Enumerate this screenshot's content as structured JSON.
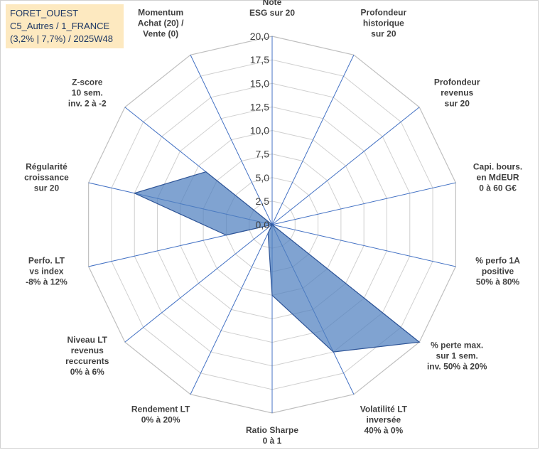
{
  "title": {
    "line1": "FORET_OUEST",
    "line2": "C5_Autres / 1_FRANCE",
    "line3": "(3,2% | 7,7%) / 2025W48"
  },
  "colors": {
    "fill": "#4f7fbf",
    "stroke": "#2f5597",
    "grid": "#d0d0d0",
    "spoke": "#4472c4",
    "title_bg": "#fde9c0",
    "title_text": "#1f3864"
  },
  "chart_data": {
    "type": "radar",
    "range": [
      0,
      20
    ],
    "tick_step": 2.5,
    "tick_labels": [
      "0,0",
      "2,5",
      "5,0",
      "7,5",
      "10,0",
      "12,5",
      "15,0",
      "17,5",
      "20,0"
    ],
    "axes": [
      {
        "label": [
          "Note",
          "ESG sur 20"
        ],
        "value": 0
      },
      {
        "label": [
          "Profondeur",
          "historique",
          "sur 20"
        ],
        "value": 0
      },
      {
        "label": [
          "Profondeur",
          "revenus",
          "sur 20"
        ],
        "value": 0
      },
      {
        "label": [
          "Capi. bours.",
          "en MdEUR",
          "0 à 60 G€"
        ],
        "value": 0
      },
      {
        "label": [
          "% perfo 1A",
          "positive",
          "50% à 80%"
        ],
        "value": 0
      },
      {
        "label": [
          "% perte max.",
          "sur 1 sem.",
          "inv. 50% à 20%"
        ],
        "value": 20
      },
      {
        "label": [
          "Volatilité LT",
          "inversée",
          "40% à 0%"
        ],
        "value": 15
      },
      {
        "label": [
          "Ratio Sharpe",
          "0 à 1"
        ],
        "value": 7.5
      },
      {
        "label": [
          "Rendement LT",
          "0% à 20%"
        ],
        "value": 1
      },
      {
        "label": [
          "Niveau LT",
          "revenus",
          "reccurents",
          "0% à 6%"
        ],
        "value": 0
      },
      {
        "label": [
          "Perfo. LT",
          "vs index",
          "-8% à 12%"
        ],
        "value": 5
      },
      {
        "label": [
          "Régularité",
          "croissance",
          "sur 20"
        ],
        "value": 15
      },
      {
        "label": [
          "Z-score",
          "10 sem.",
          "inv. 2 à -2"
        ],
        "value": 9
      },
      {
        "label": [
          "Momentum",
          "Achat (20) /",
          "Vente (0)"
        ],
        "value": 0
      }
    ]
  }
}
